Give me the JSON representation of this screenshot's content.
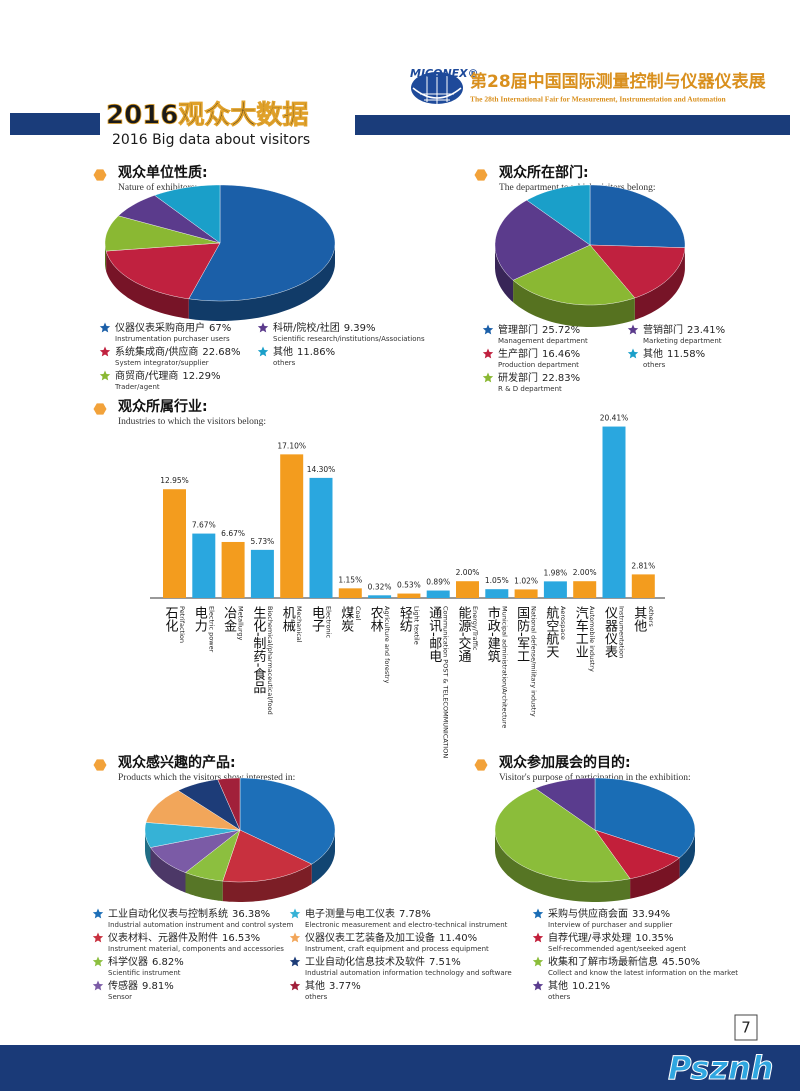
{
  "header": {
    "logo": "MICONEX®",
    "title": "第28届中国国际测量控制与仪器仪表展",
    "subtitle": "The 28th International Fair for Measurement, Instrumentation and Automation"
  },
  "banner": {
    "title": "2016观众大数据",
    "subtitle": "2016 Big data about visitors"
  },
  "charts": [
    {
      "type": "pie",
      "title": "观众单位性质:",
      "subtitle": "Nature of exhibitors:",
      "labels": [
        "仪器仪表采购商用户",
        "系统集成商/供应商",
        "商贸商/代理商",
        "科研/院校/社团",
        "其他"
      ],
      "sublabels": [
        "Instrumentation purchaser users",
        "System integrator/supplier",
        "Trader/agent",
        "Scientific research/institutions/Associations",
        "others"
      ],
      "values": [
        67,
        22.68,
        12.29,
        9.39,
        11.86
      ],
      "value_labels": [
        "67%",
        "22.68%",
        "12.29%",
        "9.39%",
        "11.86%"
      ],
      "colors": [
        "#1b5fa8",
        "#c0213f",
        "#8ab833",
        "#5b3b8c",
        "#1a9fc9"
      ]
    },
    {
      "type": "pie",
      "title": "观众所在部门:",
      "subtitle": "The department to which visitors belong:",
      "labels": [
        "管理部门",
        "生产部门",
        "研发部门",
        "营销部门",
        "其他"
      ],
      "sublabels": [
        "Management department",
        "Production department",
        "R & D department",
        "Marketing department",
        "others"
      ],
      "values": [
        25.72,
        16.46,
        22.83,
        23.41,
        11.58
      ],
      "value_labels": [
        "25.72%",
        "16.46%",
        "22.83%",
        "23.41%",
        "11.58%"
      ],
      "colors": [
        "#1b5fa8",
        "#c0213f",
        "#8ab833",
        "#5b3b8c",
        "#1a9fc9"
      ]
    },
    {
      "type": "bar",
      "title": "观众所属行业:",
      "subtitle": "Industries to which the visitors belong:",
      "categories": [
        "石化",
        "电力",
        "冶金",
        "生化-制药-食品",
        "机械",
        "电子",
        "煤炭",
        "农林",
        "轻纺",
        "通讯-邮电",
        "能源-交通",
        "市政-建筑",
        "国防-军工",
        "航空航天",
        "汽车工业",
        "仪器仪表",
        "其他"
      ],
      "sublabels": [
        "Petrifaction",
        "Electric power",
        "Metallurgy",
        "Biochemical/pharmaceutical/food",
        "Mechanical",
        "Electronic",
        "Coal",
        "Agriculture and forestry",
        "Light textile",
        "Communication POST & TELECOMMUNICATION",
        "Energy/Traffic",
        "Municipal administration/Architecture",
        "National defense/military industry",
        "Aerospace",
        "Automobile industry",
        "Instrumentation",
        "others"
      ],
      "values": [
        12.95,
        7.67,
        6.67,
        5.73,
        17.1,
        14.3,
        1.15,
        0.32,
        0.53,
        0.89,
        2.0,
        1.05,
        1.02,
        1.98,
        2.0,
        20.41,
        2.81
      ],
      "value_labels": [
        "12.95%",
        "7.67%",
        "6.67%",
        "5.73%",
        "17.10%",
        "14.30%",
        "1.15%",
        "0.32%",
        "0.53%",
        "0.89%",
        "2.00%",
        "1.05%",
        "1.02%",
        "1.98%",
        "2.00%",
        "20.41%",
        "2.81%"
      ],
      "colors": [
        "#f39c1e",
        "#2aa7df",
        "#f39c1e",
        "#2aa7df",
        "#f39c1e",
        "#2aa7df",
        "#f39c1e",
        "#2aa7df",
        "#f39c1e",
        "#2aa7df",
        "#f39c1e",
        "#2aa7df",
        "#f39c1e",
        "#2aa7df",
        "#f39c1e",
        "#2aa7df",
        "#f39c1e"
      ]
    },
    {
      "type": "pie",
      "title": "观众感兴趣的产品:",
      "subtitle": "Products which the visitors show interested in:",
      "labels": [
        "工业自动化仪表与控制系统",
        "仪表材料、元器件及附件",
        "科学仪器",
        "传感器",
        "电子测量与电工仪表",
        "仪器仪表工艺装备及加工设备",
        "工业自动化信息技术及软件",
        "其他"
      ],
      "sublabels": [
        "Industrial automation instrument and control system",
        "Instrument material, components and accessories",
        "Scientific instrument",
        "Sensor",
        "Electronic measurement and electro-technical instrument",
        "Instrument, craft equipment and process equipment",
        "Industrial automation information technology and software",
        "others"
      ],
      "values": [
        36.38,
        16.53,
        6.82,
        9.81,
        7.78,
        11.4,
        7.51,
        3.77
      ],
      "value_labels": [
        "36.38%",
        "16.53%",
        "6.82%",
        "9.81%",
        "7.78%",
        "11.40%",
        "7.51%",
        "3.77%"
      ],
      "colors": [
        "#1d6fb8",
        "#c8303e",
        "#8cbf3f",
        "#7b5ba6",
        "#36b2d6",
        "#f2a65a",
        "#1d3c78",
        "#a1203a"
      ]
    },
    {
      "type": "pie",
      "title": "观众参加展会的目的:",
      "subtitle": "Visitor's purpose of participation in the exhibition:",
      "labels": [
        "采购与供应商会面",
        "自荐代理/寻求处理",
        "收集和了解市场最新信息",
        "其他"
      ],
      "sublabels": [
        "Interview of purchaser and supplier",
        "Self-recommended agent/seeked agent",
        "Collect and know the latest information on the market",
        "others"
      ],
      "values": [
        33.94,
        10.35,
        45.5,
        10.21
      ],
      "value_labels": [
        "33.94%",
        "10.35%",
        "45.50%",
        "10.21%"
      ],
      "colors": [
        "#1a6db5",
        "#c21f3a",
        "#8bbd3a",
        "#5a3c8e"
      ]
    }
  ],
  "page_number": "7",
  "watermark": "Psznh"
}
